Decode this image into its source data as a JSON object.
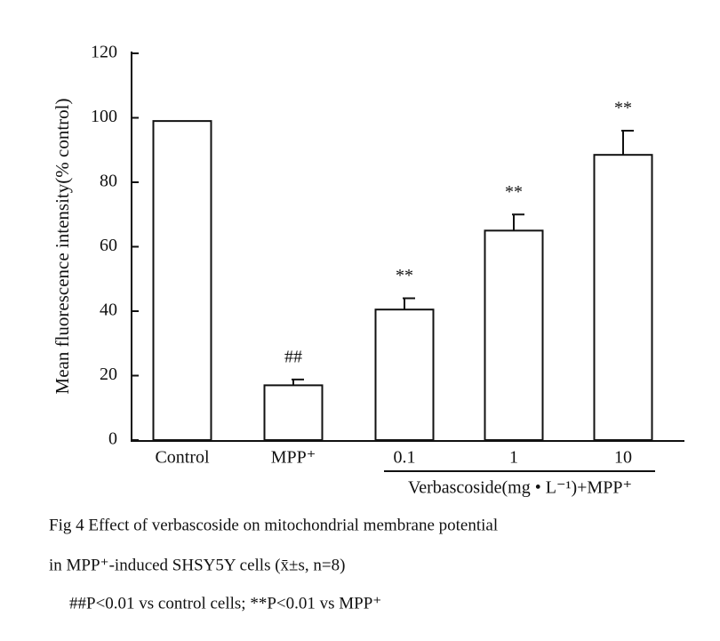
{
  "chart_data": {
    "type": "bar",
    "ylabel": "Mean fluorescence intensity(% control)",
    "categories": [
      "Control",
      "MPP⁺",
      "0.1",
      "1",
      "10"
    ],
    "values": [
      99,
      17,
      40.5,
      65,
      88.5
    ],
    "errors": [
      null,
      1.8,
      3.5,
      5,
      7.5
    ],
    "annotations": [
      null,
      "##",
      "**",
      "**",
      "**"
    ],
    "group_label": "Verbascoside(mg • L⁻¹)+MPP⁺",
    "color": "#ffffff",
    "ylim": [
      0,
      120
    ],
    "yticks": [
      0,
      20,
      40,
      60,
      80,
      100,
      120
    ],
    "grid": false
  },
  "caption": [
    "Fig 4   Effect of verbascoside on mitochondrial membrane potential",
    "in MPP⁺-induced SHSY5Y cells (x̄±s, n=8)",
    "##P<0.01 vs control cells; **P<0.01 vs MPP⁺"
  ]
}
